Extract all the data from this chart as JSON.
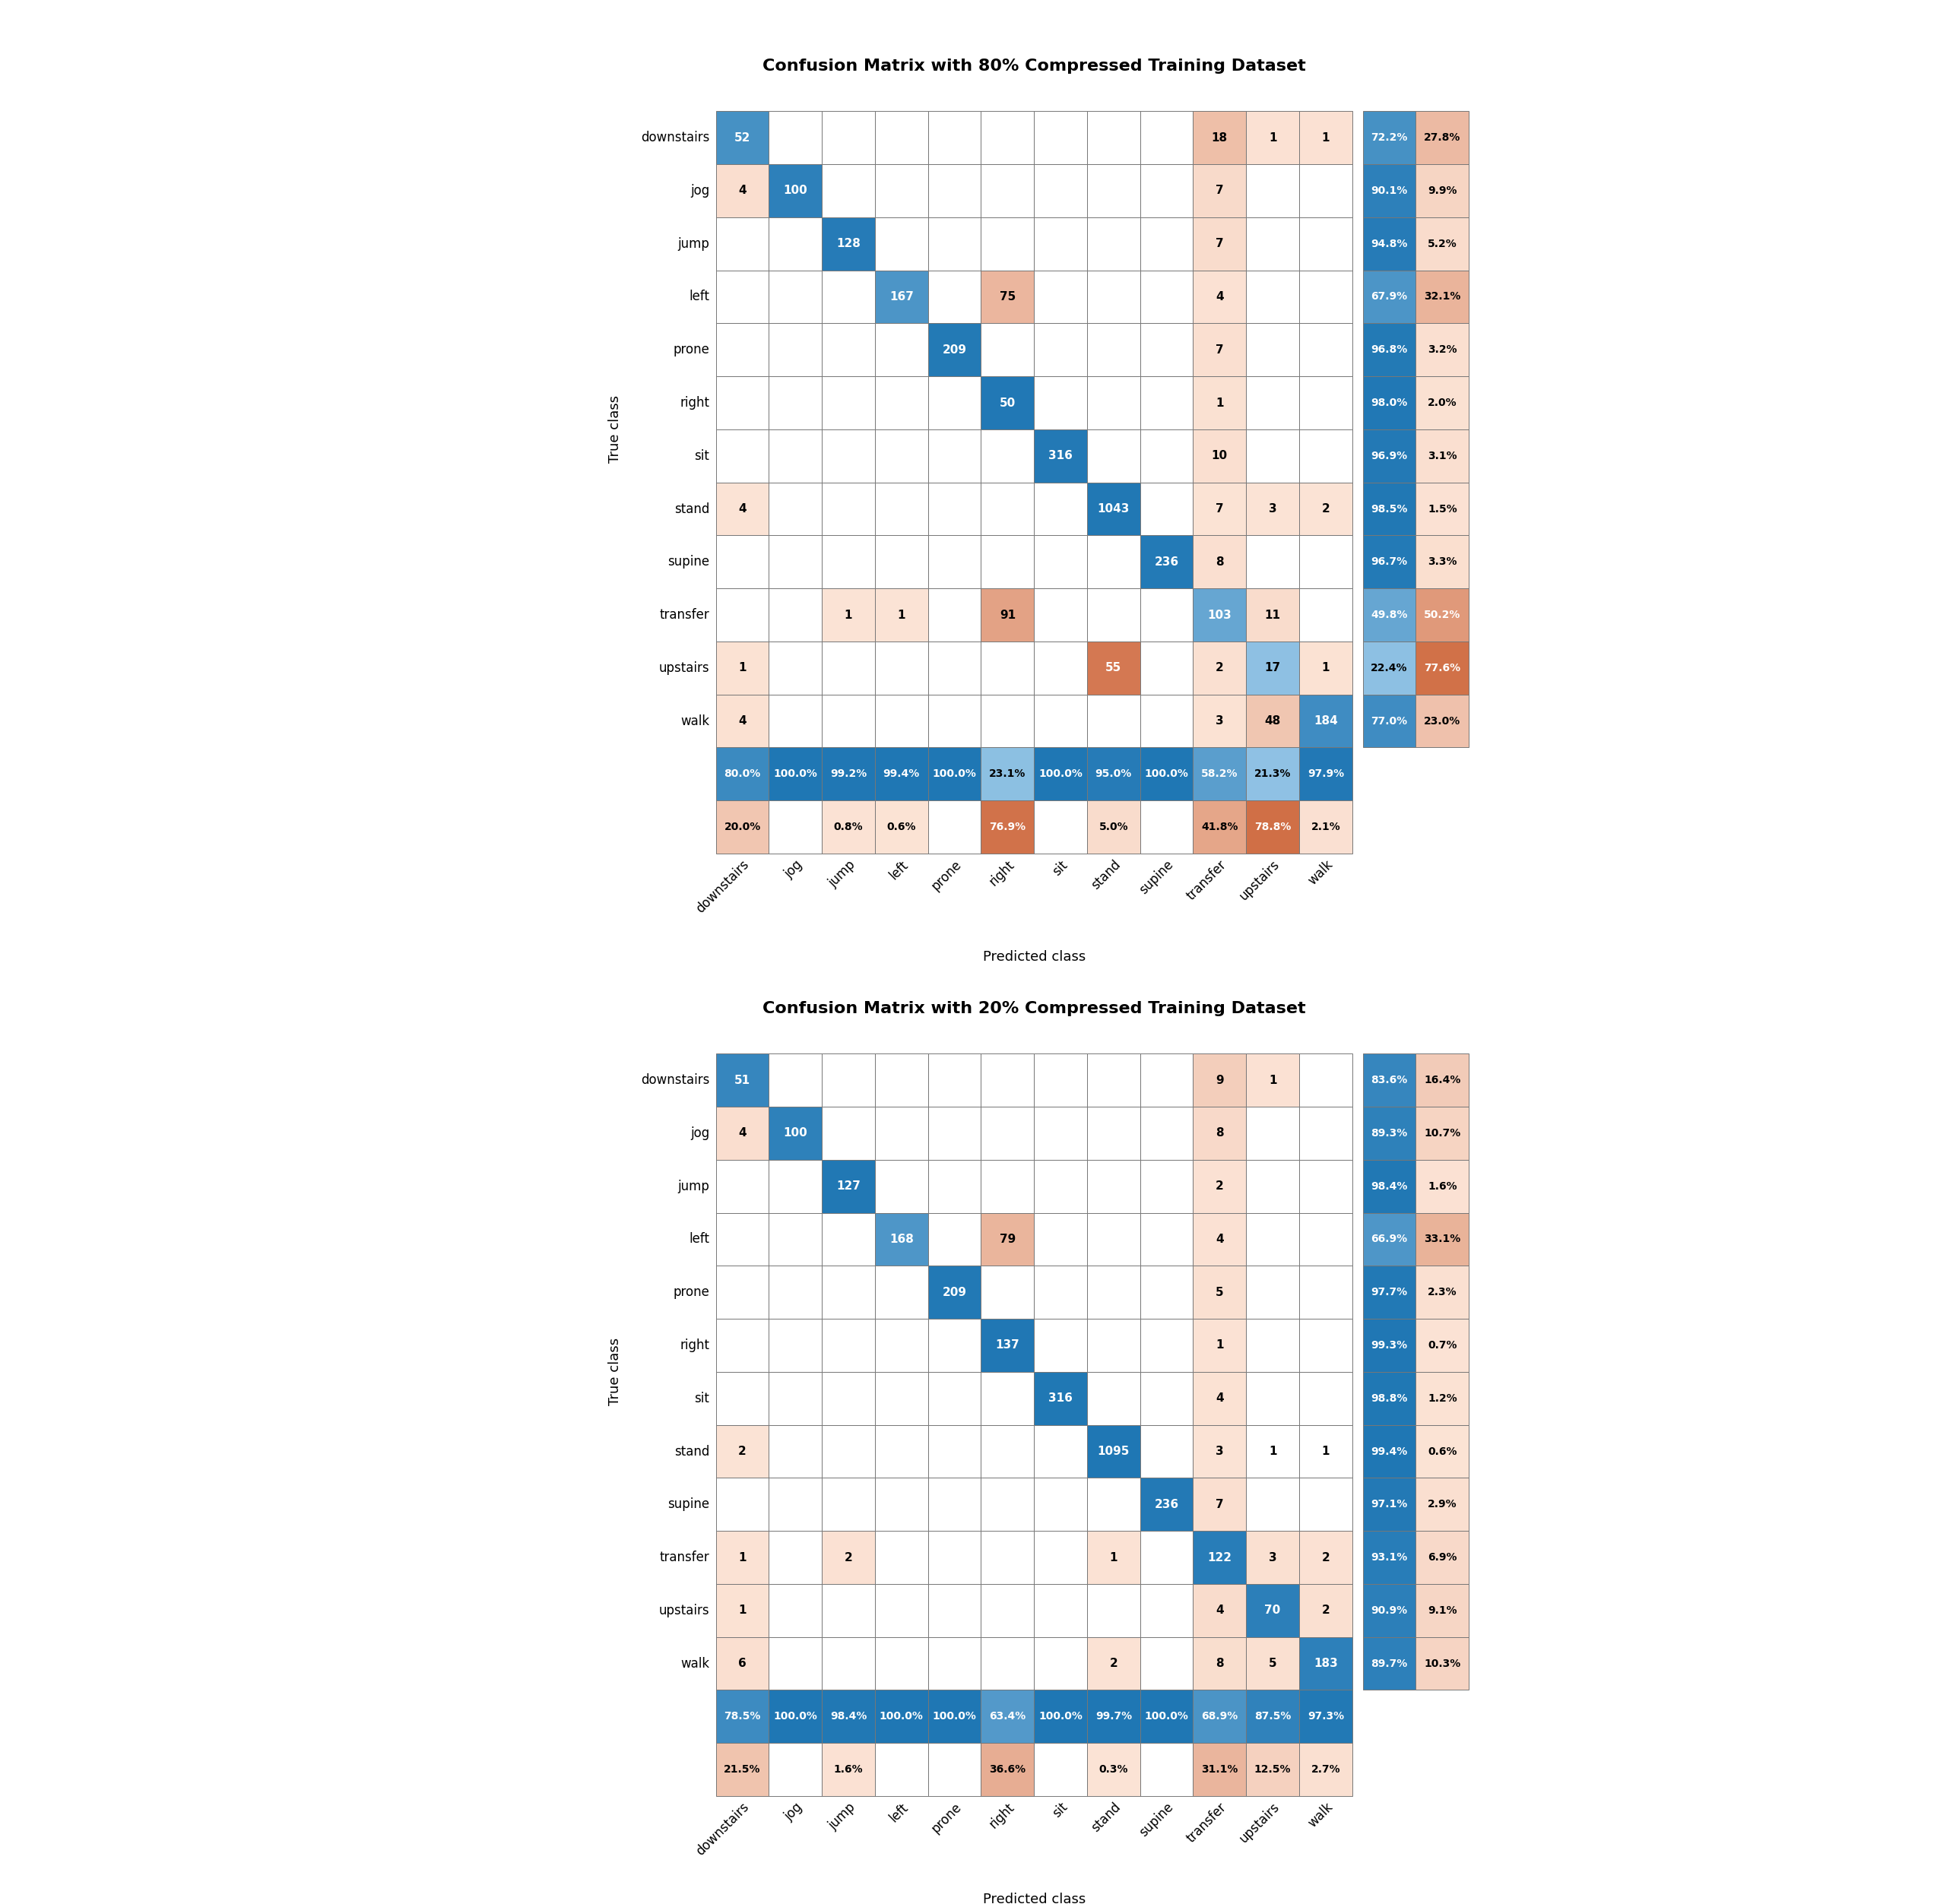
{
  "classes": [
    "downstairs",
    "jog",
    "jump",
    "left",
    "prone",
    "right",
    "sit",
    "stand",
    "supine",
    "transfer",
    "upstairs",
    "walk"
  ],
  "title1": "Confusion Matrix with 80% Compressed Training Dataset",
  "title2": "Confusion Matrix with 20% Compressed Training Dataset",
  "matrix1": [
    [
      52,
      0,
      0,
      0,
      0,
      0,
      0,
      0,
      0,
      18,
      1,
      1
    ],
    [
      4,
      100,
      0,
      0,
      0,
      0,
      0,
      0,
      0,
      7,
      0,
      0
    ],
    [
      0,
      0,
      128,
      0,
      0,
      0,
      0,
      0,
      0,
      7,
      0,
      0
    ],
    [
      0,
      0,
      0,
      167,
      0,
      75,
      0,
      0,
      0,
      4,
      0,
      0
    ],
    [
      0,
      0,
      0,
      0,
      209,
      0,
      0,
      0,
      0,
      7,
      0,
      0
    ],
    [
      0,
      0,
      0,
      0,
      0,
      50,
      0,
      0,
      0,
      1,
      0,
      0
    ],
    [
      0,
      0,
      0,
      0,
      0,
      0,
      316,
      0,
      0,
      10,
      0,
      0
    ],
    [
      4,
      0,
      0,
      0,
      0,
      0,
      0,
      1043,
      0,
      7,
      3,
      2
    ],
    [
      0,
      0,
      0,
      0,
      0,
      0,
      0,
      0,
      236,
      8,
      0,
      0
    ],
    [
      0,
      0,
      1,
      1,
      0,
      91,
      0,
      0,
      0,
      103,
      11,
      0
    ],
    [
      1,
      0,
      0,
      0,
      0,
      0,
      0,
      55,
      0,
      2,
      17,
      1
    ],
    [
      4,
      0,
      0,
      0,
      0,
      0,
      0,
      0,
      0,
      3,
      48,
      184
    ]
  ],
  "col_correct1": [
    80.0,
    100.0,
    99.2,
    99.4,
    100.0,
    23.1,
    100.0,
    95.0,
    100.0,
    58.2,
    21.3,
    97.9
  ],
  "col_wrong1": [
    20.0,
    0.0,
    0.8,
    0.6,
    0.0,
    76.9,
    0.0,
    5.0,
    0.0,
    41.8,
    78.8,
    2.1
  ],
  "row_correct1": [
    72.2,
    90.1,
    94.8,
    67.9,
    96.8,
    98.0,
    96.9,
    98.5,
    96.7,
    49.8,
    22.4,
    77.0
  ],
  "row_wrong1": [
    27.8,
    9.9,
    5.2,
    32.1,
    3.2,
    2.0,
    3.1,
    1.5,
    3.3,
    50.2,
    77.6,
    23.0
  ],
  "matrix2": [
    [
      51,
      0,
      0,
      0,
      0,
      0,
      0,
      0,
      0,
      9,
      1,
      0
    ],
    [
      4,
      100,
      0,
      0,
      0,
      0,
      0,
      0,
      0,
      8,
      0,
      0
    ],
    [
      0,
      0,
      127,
      0,
      0,
      0,
      0,
      0,
      0,
      2,
      0,
      0
    ],
    [
      0,
      0,
      0,
      168,
      0,
      79,
      0,
      0,
      0,
      4,
      0,
      0
    ],
    [
      0,
      0,
      0,
      0,
      209,
      0,
      0,
      0,
      0,
      5,
      0,
      0
    ],
    [
      0,
      0,
      0,
      0,
      0,
      137,
      0,
      0,
      0,
      1,
      0,
      0
    ],
    [
      0,
      0,
      0,
      0,
      0,
      0,
      316,
      0,
      0,
      4,
      0,
      0
    ],
    [
      2,
      0,
      0,
      0,
      0,
      0,
      0,
      1095,
      0,
      3,
      1,
      1
    ],
    [
      0,
      0,
      0,
      0,
      0,
      0,
      0,
      0,
      236,
      7,
      0,
      0
    ],
    [
      1,
      0,
      2,
      0,
      0,
      0,
      0,
      1,
      0,
      122,
      3,
      2
    ],
    [
      1,
      0,
      0,
      0,
      0,
      0,
      0,
      0,
      0,
      4,
      70,
      2
    ],
    [
      6,
      0,
      0,
      0,
      0,
      0,
      0,
      2,
      0,
      8,
      5,
      183
    ]
  ],
  "col_correct2": [
    78.5,
    100.0,
    98.4,
    100.0,
    100.0,
    63.4,
    100.0,
    99.7,
    100.0,
    68.9,
    87.5,
    97.3
  ],
  "col_wrong2": [
    21.5,
    0.0,
    1.6,
    0.0,
    0.0,
    36.6,
    0.0,
    0.3,
    0.0,
    31.1,
    12.5,
    2.7
  ],
  "row_correct2": [
    83.6,
    89.3,
    98.4,
    66.9,
    97.7,
    99.3,
    98.8,
    99.4,
    97.1,
    93.1,
    90.9,
    89.7
  ],
  "row_wrong2": [
    16.4,
    10.7,
    1.6,
    33.1,
    2.3,
    0.7,
    1.2,
    0.6,
    2.9,
    6.9,
    9.1,
    10.3
  ],
  "ylabel": "True class",
  "xlabel": "Predicted class",
  "cell_fontsize": 11,
  "label_fontsize": 12,
  "title_fontsize": 16,
  "axis_label_fontsize": 13,
  "pct_fontsize": 10
}
